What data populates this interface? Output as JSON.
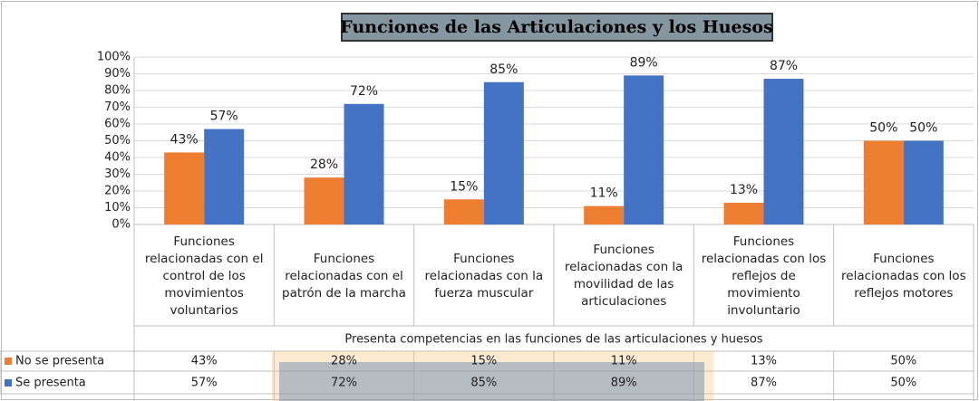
{
  "chart_data": {
    "type": "bar",
    "title": "Funciones de las Articulaciones y los Huesos",
    "x_label": "Presenta competencias en las funciones de las articulaciones y huesos",
    "categories": [
      "Funciones relacionadas con el control de los movimientos voluntarios",
      "Funciones relacionadas con el patrón de la marcha",
      "Funciones relacionadas con la fuerza muscular",
      "Funciones relacionadas con la movilidad de las articulaciones",
      "Funciones relacionadas con los reflejos de movimiento involuntario",
      "Funciones relacionadas con los reflejos motores"
    ],
    "series": [
      {
        "name": "No se presenta",
        "color": "#ed7d31",
        "values": [
          43,
          28,
          15,
          11,
          13,
          50
        ],
        "value_labels": [
          "43%",
          "28%",
          "15%",
          "11%",
          "13%",
          "50%"
        ]
      },
      {
        "name": "Se presenta",
        "color": "#4472c4",
        "values": [
          57,
          72,
          85,
          89,
          87,
          50
        ],
        "value_labels": [
          "57%",
          "72%",
          "85%",
          "89%",
          "87%",
          "50%"
        ]
      }
    ],
    "ylim": [
      0,
      100
    ],
    "yticks": [
      {
        "value": 0,
        "label": "0%"
      },
      {
        "value": 10,
        "label": "10%"
      },
      {
        "value": 20,
        "label": "20%"
      },
      {
        "value": 30,
        "label": "30%"
      },
      {
        "value": 40,
        "label": "40%"
      },
      {
        "value": 50,
        "label": "50%"
      },
      {
        "value": 60,
        "label": "60%"
      },
      {
        "value": 70,
        "label": "70%"
      },
      {
        "value": 80,
        "label": "80%"
      },
      {
        "value": 90,
        "label": "90%"
      },
      {
        "value": 100,
        "label": "100%"
      }
    ],
    "grid": true
  }
}
